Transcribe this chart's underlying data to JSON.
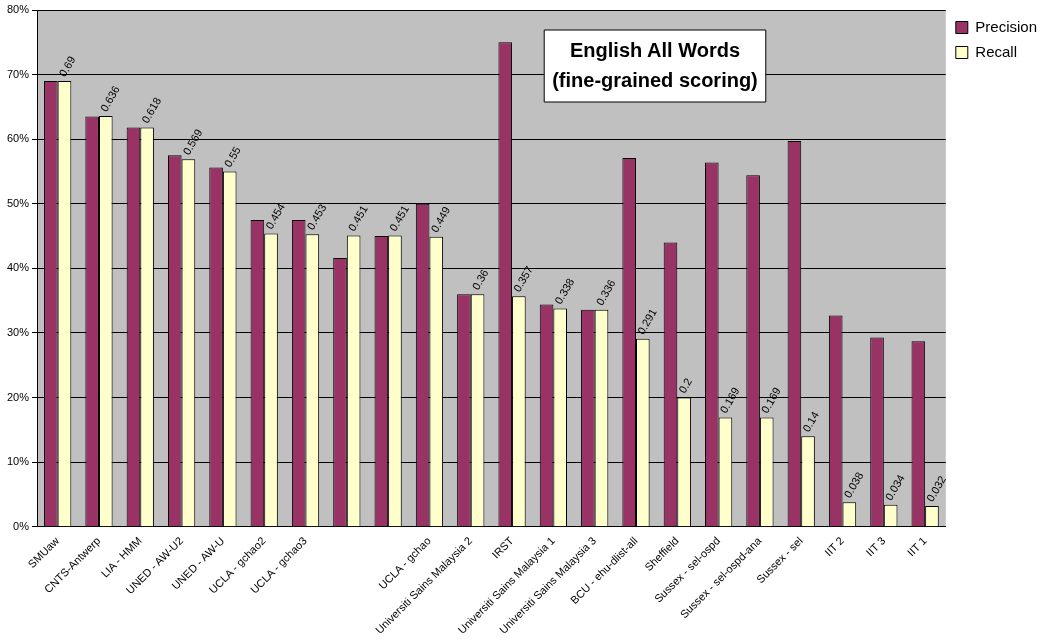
{
  "chart_data": {
    "type": "bar",
    "title": "English All Words\n(fine-grained scoring)",
    "categories": [
      "SMUaw",
      "CNTS-Antwerp",
      "LIA - HMM",
      "UNED - AW-U2",
      "UNED - AW-U",
      "UCLA - gchao2",
      "UCLA - gchao3",
      null,
      null,
      "UCLA - gchao",
      "Universiti Sains Malaysia 2",
      "IRST",
      "Universiti Sains Malaysia 1",
      "Universiti Sains Malaysia 3",
      "BCU - ehu-dlist-all",
      "Sheffield",
      "Sussex - sel-ospd",
      "Sussex - sel-ospd-ana",
      "Sussex - sel",
      "IIT 2",
      "IIT 3",
      "IIT 1"
    ],
    "series": [
      {
        "name": "Precision",
        "color": "#993366",
        "values": [
          0.69,
          0.635,
          0.618,
          0.575,
          0.556,
          0.475,
          0.475,
          0.416,
          0.45,
          0.5,
          0.36,
          0.75,
          0.344,
          0.336,
          0.571,
          0.44,
          0.564,
          0.544,
          0.597,
          0.327,
          0.293,
          0.287
        ]
      },
      {
        "name": "Recall",
        "color": "#ffffcc",
        "values": [
          0.69,
          0.636,
          0.618,
          0.569,
          0.55,
          0.454,
          0.453,
          0.451,
          0.451,
          0.449,
          0.36,
          0.357,
          0.338,
          0.336,
          0.291,
          0.2,
          0.169,
          0.169,
          0.14,
          0.038,
          0.034,
          0.032
        ],
        "value_labels": [
          "0.69",
          "0.636",
          "0.618",
          "0.569",
          "0.55",
          "0.454",
          "0.453",
          "0.451",
          "0.451",
          "0.449",
          "0.36",
          "0.357",
          "0.338",
          "0.336",
          "0.291",
          "0.2",
          "0.169",
          "0.169",
          "0.14",
          "0.038",
          "0.034",
          "0.032"
        ]
      }
    ],
    "ylim": [
      0,
      0.8
    ],
    "yticks": [
      {
        "value": 0,
        "label": "0%"
      },
      {
        "value": 0.1,
        "label": "10%"
      },
      {
        "value": 0.2,
        "label": "20%"
      },
      {
        "value": 0.3,
        "label": "30%"
      },
      {
        "value": 0.4,
        "label": "40%"
      },
      {
        "value": 0.5,
        "label": "50%"
      },
      {
        "value": 0.6,
        "label": "60%"
      },
      {
        "value": 0.7,
        "label": "70%"
      },
      {
        "value": 0.8,
        "label": "80%"
      }
    ],
    "grid": "y",
    "legend": "right"
  }
}
